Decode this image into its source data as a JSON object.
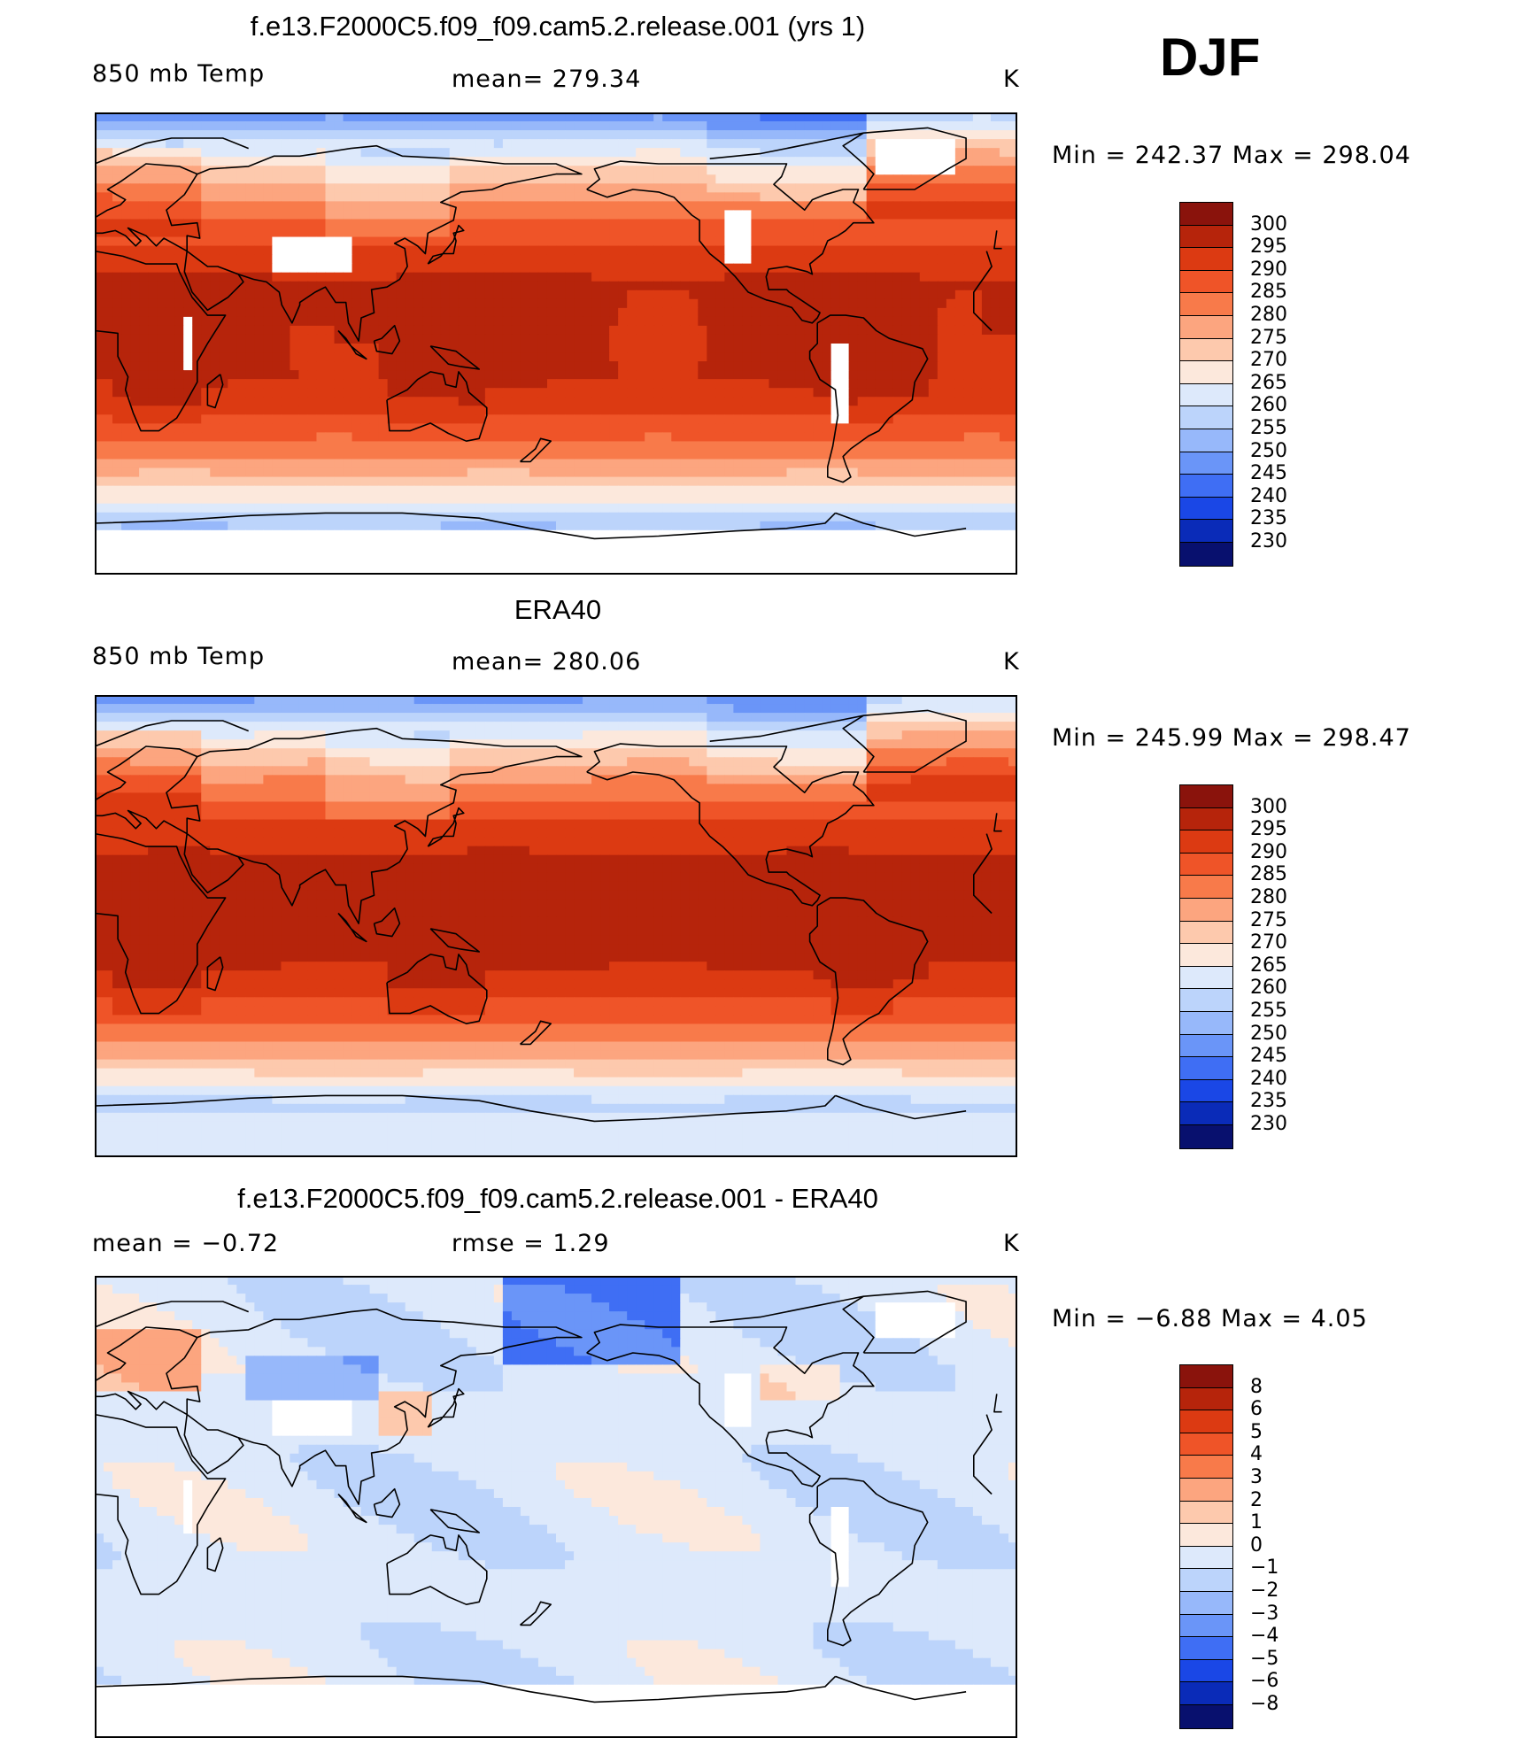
{
  "season": "DJF",
  "colors": {
    "temp": [
      "#08106e",
      "#0a2bb8",
      "#1a47e6",
      "#3f6ef4",
      "#6a95f8",
      "#97b8fa",
      "#bcd4fb",
      "#dde9fb",
      "#fce8dc",
      "#fdc9ad",
      "#fca57f",
      "#f87a4a",
      "#ef5428",
      "#dc3a12",
      "#b6240b",
      "#8a130c"
    ],
    "diff": [
      "#08106e",
      "#0a2bb8",
      "#1a47e6",
      "#3f6ef4",
      "#6a95f8",
      "#97b8fa",
      "#bcd4fb",
      "#dde9fb",
      "#fce8dc",
      "#fdc9ad",
      "#fca57f",
      "#f87a4a",
      "#ef5428",
      "#dc3a12",
      "#b6240b",
      "#8a130c"
    ]
  },
  "panels": [
    {
      "title": "f.e13.F2000C5.f09_f09.cam5.2.release.001 (yrs 1)",
      "left_label": "850 mb Temp",
      "center_label": "mean= 279.34",
      "units": "K",
      "minmax": "Min  =  242.37  Max  =  298.04",
      "colorbar_labels": [
        "300",
        "295",
        "290",
        "285",
        "280",
        "275",
        "270",
        "265",
        "260",
        "255",
        "250",
        "245",
        "240",
        "235",
        "230"
      ],
      "field": "model"
    },
    {
      "title": "ERA40",
      "left_label": "850 mb Temp",
      "center_label": "mean= 280.06",
      "units": "K",
      "minmax": "Min  =  245.99  Max  =  298.47",
      "colorbar_labels": [
        "300",
        "295",
        "290",
        "285",
        "280",
        "275",
        "270",
        "265",
        "260",
        "255",
        "250",
        "245",
        "240",
        "235",
        "230"
      ],
      "field": "obs"
    },
    {
      "title": "f.e13.F2000C5.f09_f09.cam5.2.release.001 - ERA40",
      "left_label": "mean =    −0.72",
      "center_label": "rmse =     1.29",
      "units": "K",
      "minmax": "Min  =    −6.88  Max  =      4.05",
      "colorbar_labels": [
        "8",
        "6",
        "5",
        "4",
        "3",
        "2",
        "1",
        "0",
        "−1",
        "−2",
        "−3",
        "−4",
        "−5",
        "−6",
        "−8"
      ],
      "field": "diff"
    }
  ]
}
